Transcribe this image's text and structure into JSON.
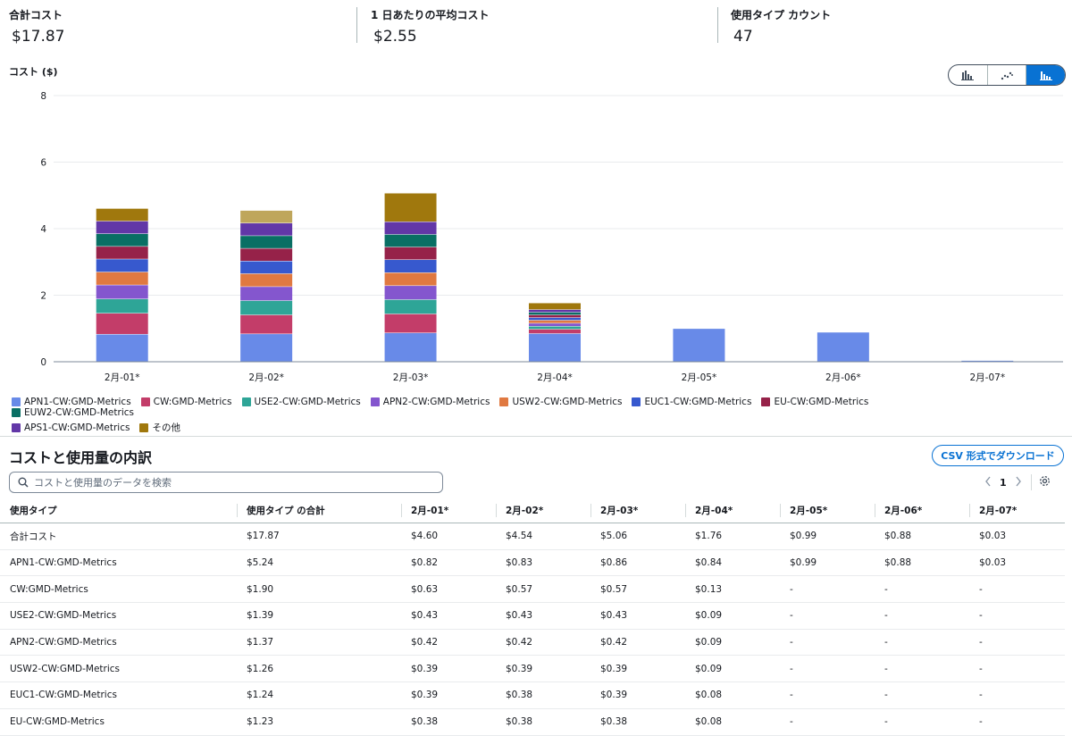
{
  "summary": {
    "total_label": "合計コスト",
    "total_value": "$17.87",
    "avg_label": "1 日あたりの平均コスト",
    "avg_value": "$2.55",
    "types_label": "使用タイプ カウント",
    "types_value": "47"
  },
  "chart_controls": {
    "icons": [
      "bar-chart-icon",
      "line-chart-icon",
      "stacked-bar-chart-icon"
    ],
    "selected": "stacked-bar-chart-icon",
    "active_color": "#0972d3"
  },
  "chart_data": {
    "type": "bar",
    "stacked": true,
    "ylabel": "コスト ($)",
    "ylim": [
      0,
      8
    ],
    "yticks": [
      0,
      2,
      4,
      6,
      8
    ],
    "grid": true,
    "categories": [
      "2月-01*",
      "2月-02*",
      "2月-03*",
      "2月-04*",
      "2月-05*",
      "2月-06*",
      "2月-07*"
    ],
    "series": [
      {
        "name": "APN1-CW:GMD-Metrics",
        "color": "#688ae8",
        "values": [
          0.82,
          0.83,
          0.86,
          0.84,
          0.99,
          0.88,
          0.03
        ]
      },
      {
        "name": "CW:GMD-Metrics",
        "color": "#c33d69",
        "values": [
          0.63,
          0.57,
          0.57,
          0.13,
          0,
          0,
          0
        ]
      },
      {
        "name": "USE2-CW:GMD-Metrics",
        "color": "#2ea597",
        "values": [
          0.43,
          0.43,
          0.43,
          0.09,
          0,
          0,
          0
        ]
      },
      {
        "name": "APN2-CW:GMD-Metrics",
        "color": "#8456ce",
        "values": [
          0.42,
          0.42,
          0.42,
          0.09,
          0,
          0,
          0
        ]
      },
      {
        "name": "USW2-CW:GMD-Metrics",
        "color": "#e07941",
        "values": [
          0.39,
          0.39,
          0.39,
          0.09,
          0,
          0,
          0
        ]
      },
      {
        "name": "EUC1-CW:GMD-Metrics",
        "color": "#3759ce",
        "values": [
          0.39,
          0.38,
          0.39,
          0.08,
          0,
          0,
          0
        ]
      },
      {
        "name": "EU-CW:GMD-Metrics",
        "color": "#962249",
        "values": [
          0.38,
          0.38,
          0.38,
          0.08,
          0,
          0,
          0
        ]
      },
      {
        "name": "EUW2-CW:GMD-Metrics",
        "color": "#096f64",
        "values": [
          0.38,
          0.38,
          0.38,
          0.08,
          0,
          0,
          0
        ]
      },
      {
        "name": "APS1-CW:GMD-Metrics",
        "color": "#6237a7",
        "values": [
          0.38,
          0.38,
          0.38,
          0.08,
          0,
          0,
          0
        ]
      },
      {
        "name": "その他",
        "color": "#a0780d",
        "values": [
          0.38,
          0.38,
          0.86,
          0.2,
          0,
          0,
          0
        ],
        "alt_color": "#bfa65b"
      }
    ]
  },
  "breakdown": {
    "title": "コストと使用量の内訳",
    "csv_button": "CSV 形式でダウンロード",
    "search_placeholder": "コストと使用量のデータを検索",
    "page": "1",
    "columns": [
      "使用タイプ",
      "使用タイプ の合計",
      "2月-01*",
      "2月-02*",
      "2月-03*",
      "2月-04*",
      "2月-05*",
      "2月-06*",
      "2月-07*"
    ],
    "rows": [
      [
        "合計コスト",
        "$17.87",
        "$4.60",
        "$4.54",
        "$5.06",
        "$1.76",
        "$0.99",
        "$0.88",
        "$0.03"
      ],
      [
        "APN1-CW:GMD-Metrics",
        "$5.24",
        "$0.82",
        "$0.83",
        "$0.86",
        "$0.84",
        "$0.99",
        "$0.88",
        "$0.03"
      ],
      [
        "CW:GMD-Metrics",
        "$1.90",
        "$0.63",
        "$0.57",
        "$0.57",
        "$0.13",
        "-",
        "-",
        "-"
      ],
      [
        "USE2-CW:GMD-Metrics",
        "$1.39",
        "$0.43",
        "$0.43",
        "$0.43",
        "$0.09",
        "-",
        "-",
        "-"
      ],
      [
        "APN2-CW:GMD-Metrics",
        "$1.37",
        "$0.42",
        "$0.42",
        "$0.42",
        "$0.09",
        "-",
        "-",
        "-"
      ],
      [
        "USW2-CW:GMD-Metrics",
        "$1.26",
        "$0.39",
        "$0.39",
        "$0.39",
        "$0.09",
        "-",
        "-",
        "-"
      ],
      [
        "EUC1-CW:GMD-Metrics",
        "$1.24",
        "$0.39",
        "$0.38",
        "$0.39",
        "$0.08",
        "-",
        "-",
        "-"
      ],
      [
        "EU-CW:GMD-Metrics",
        "$1.23",
        "$0.38",
        "$0.38",
        "$0.38",
        "$0.08",
        "-",
        "-",
        "-"
      ]
    ]
  }
}
